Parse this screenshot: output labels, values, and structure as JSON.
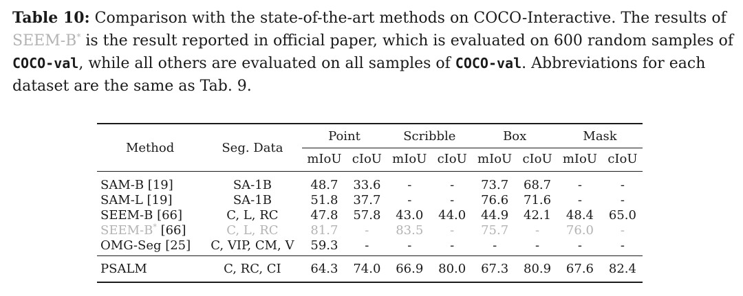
{
  "caption": {
    "label": "Table 10:",
    "sentence1": "Comparison with the state-of-the-art methods on COCO-Interactive. The results of",
    "faded_method": "SEEM-B",
    "faded_sup": "*",
    "sentence2": "is the result reported in official paper, which is evaluated on 600 random samples of",
    "dataset1": "COCO-val",
    "sentence3": ", while all others are evaluated on all samples of",
    "dataset2": "COCO-val",
    "sentence4": ". Abbreviations for each dataset are the same as Tab. 9."
  },
  "table": {
    "col_method": "Method",
    "col_segdata": "Seg. Data",
    "groups": [
      "Point",
      "Scribble",
      "Box",
      "Mask"
    ],
    "subheaders": [
      "mIoU",
      "cIoU",
      "mIoU",
      "cIoU",
      "mIoU",
      "cIoU",
      "mIoU",
      "cIoU"
    ],
    "rows": [
      {
        "method": "SAM-B [19]",
        "sup": "",
        "ref": "",
        "seg": "SA-1B",
        "vals": [
          "48.7",
          "33.6",
          "-",
          "-",
          "73.7",
          "68.7",
          "-",
          "-"
        ],
        "faded": false
      },
      {
        "method": "SAM-L [19]",
        "sup": "",
        "ref": "",
        "seg": "SA-1B",
        "vals": [
          "51.8",
          "37.7",
          "-",
          "-",
          "76.6",
          "71.6",
          "-",
          "-"
        ],
        "faded": false
      },
      {
        "method": "SEEM-B [66]",
        "sup": "",
        "ref": "",
        "seg": "C, L, RC",
        "vals": [
          "47.8",
          "57.8",
          "43.0",
          "44.0",
          "44.9",
          "42.1",
          "48.4",
          "65.0"
        ],
        "faded": false
      },
      {
        "method": "SEEM-B",
        "sup": "*",
        "ref": " [66]",
        "seg": "C, L, RC",
        "vals": [
          "81.7",
          "-",
          "83.5",
          "-",
          "75.7",
          "-",
          "76.0",
          "-"
        ],
        "faded": true
      },
      {
        "method": "OMG-Seg [25]",
        "sup": "",
        "ref": "",
        "seg": "C, VIP, CM, V",
        "vals": [
          "59.3",
          "-",
          "-",
          "-",
          "-",
          "-",
          "-",
          "-"
        ],
        "faded": false
      }
    ],
    "final_row": {
      "method": "PSALM",
      "seg": "C, RC, CI",
      "vals": [
        "64.3",
        "74.0",
        "66.9",
        "80.0",
        "67.3",
        "80.9",
        "67.6",
        "82.4"
      ]
    }
  }
}
